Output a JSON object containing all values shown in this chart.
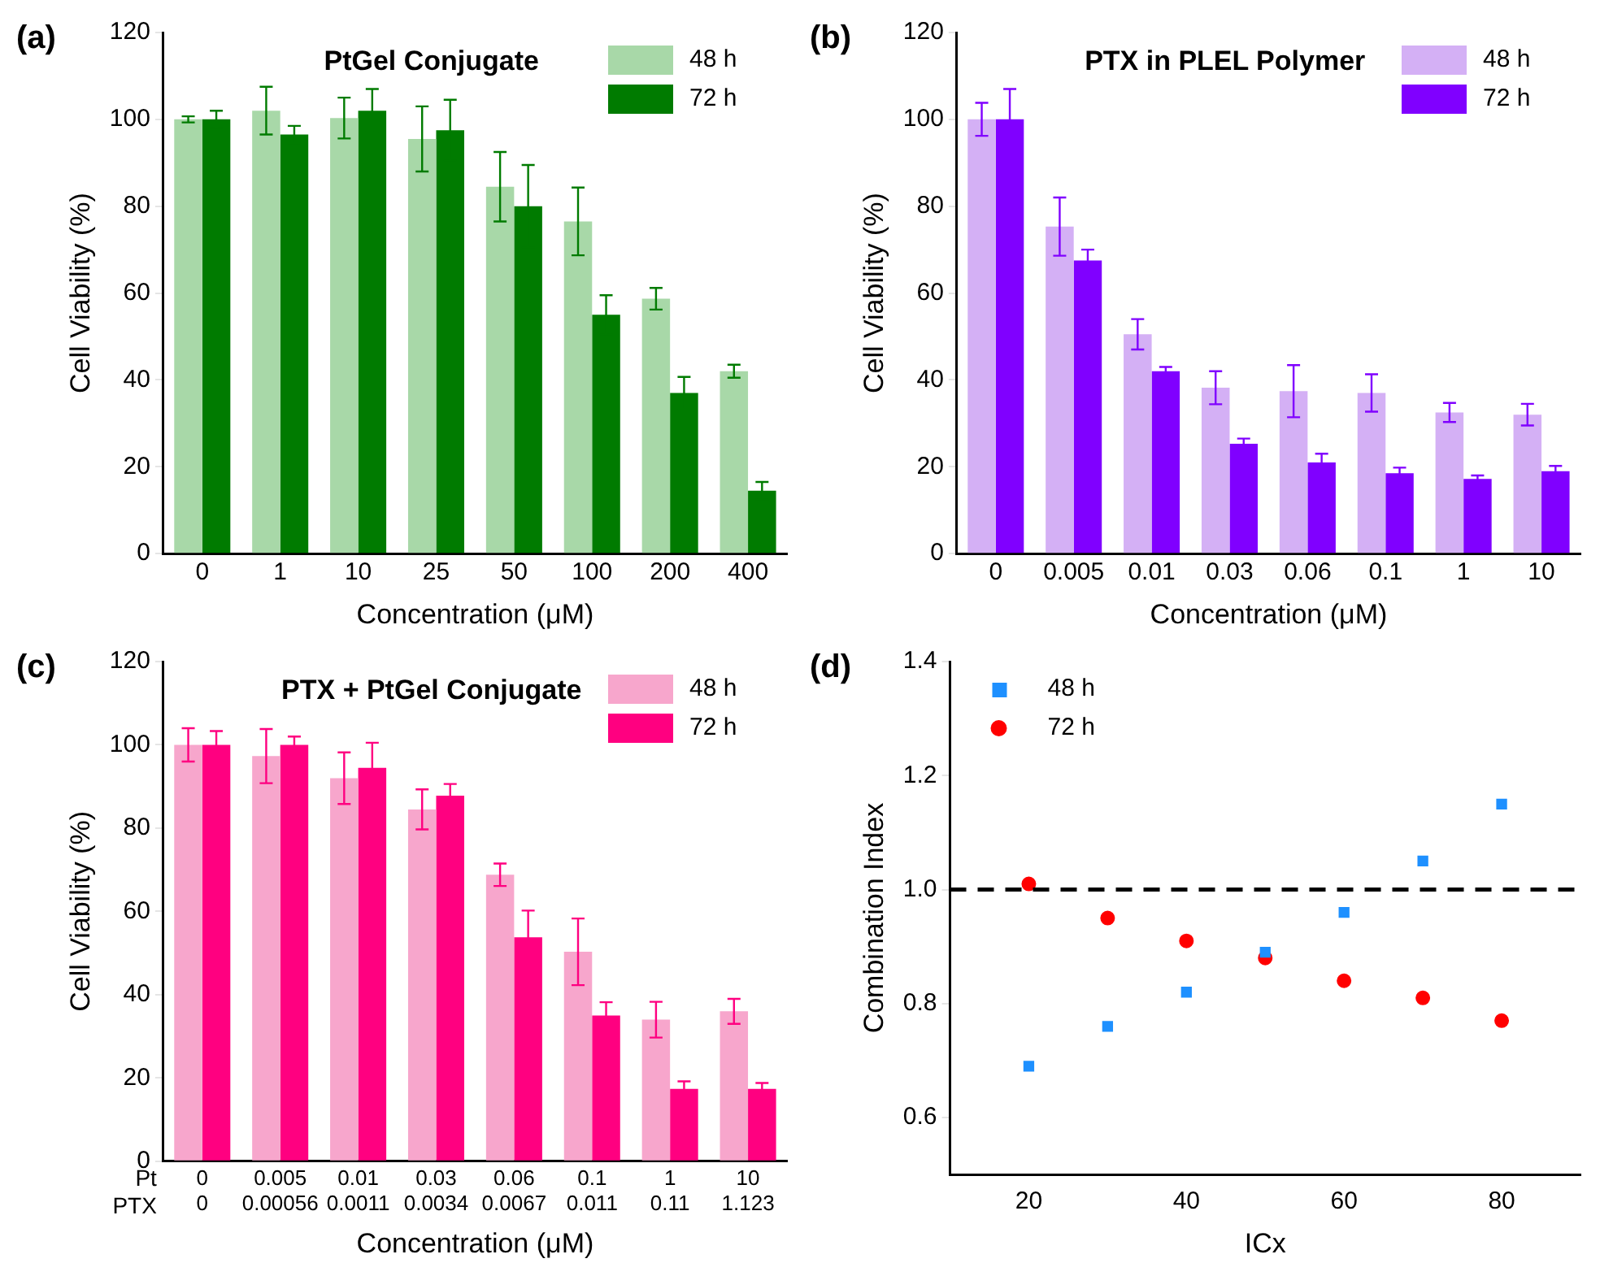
{
  "chart_data": [
    {
      "type": "bar",
      "title": "PtGel Conjugate",
      "xlabel": "Concentration (μM)",
      "ylabel": "Cell Viability (%)",
      "annotations": [
        "(a)"
      ],
      "categories": [
        "0",
        "1",
        "10",
        "25",
        "50",
        "100",
        "200",
        "400"
      ],
      "series": [
        {
          "name": "48 h",
          "color": "#a8d8a8",
          "values": [
            100,
            102,
            100.3,
            95.5,
            84.5,
            76.5,
            58.7,
            42
          ],
          "errors": [
            0.7,
            5.5,
            4.7,
            7.5,
            8,
            7.8,
            2.5,
            1.5
          ]
        },
        {
          "name": "72 h",
          "color": "#007b00",
          "values": [
            100,
            96.5,
            102,
            97.5,
            80,
            55,
            37,
            14.5
          ],
          "errors": [
            2,
            2,
            5,
            7,
            9.5,
            4.5,
            3.7,
            2
          ]
        }
      ],
      "ylim": [
        0,
        120
      ],
      "yticks": [
        0,
        20,
        40,
        60,
        80,
        100,
        120
      ],
      "grid": false,
      "legend": "top right"
    },
    {
      "type": "bar",
      "title": "PTX in PLEL Polymer",
      "xlabel": "Concentration (μM)",
      "ylabel": "Cell Viability (%)",
      "annotations": [
        "(b)"
      ],
      "categories": [
        "0",
        "0.005",
        "0.01",
        "0.03",
        "0.06",
        "0.1",
        "1",
        "10"
      ],
      "series": [
        {
          "name": "48 h",
          "color": "#d4b0f5",
          "values": [
            100,
            75.3,
            50.5,
            38.2,
            37.4,
            37,
            32.5,
            32
          ],
          "errors": [
            3.8,
            6.7,
            3.5,
            3.8,
            6,
            4.3,
            2.2,
            2.5
          ]
        },
        {
          "name": "72 h",
          "color": "#8000ff",
          "values": [
            100,
            67.5,
            42,
            25.3,
            21,
            18.5,
            17.2,
            19
          ],
          "errors": [
            7,
            2.5,
            1,
            1.2,
            2,
            1.3,
            0.8,
            1.2
          ]
        }
      ],
      "ylim": [
        0,
        120
      ],
      "yticks": [
        0,
        20,
        40,
        60,
        80,
        100,
        120
      ],
      "grid": false,
      "legend": "top right"
    },
    {
      "type": "bar",
      "title": "PTX + PtGel Conjugate",
      "xlabel": "Concentration (μM)",
      "ylabel": "Cell Viability (%)",
      "annotations": [
        "(c)",
        "Pt",
        "PTX"
      ],
      "categories": [
        "0\n0",
        "0.005\n0.00056",
        "0.01\n0.0011",
        "0.03\n0.0034",
        "0.06\n0.0067",
        "0.1\n0.011",
        "1\n0.11",
        "10\n1.123"
      ],
      "series": [
        {
          "name": "48 h",
          "color": "#f7a6cc",
          "values": [
            100,
            97.3,
            92,
            84.5,
            68.8,
            50.3,
            34,
            36
          ],
          "errors": [
            4,
            6.5,
            6.2,
            4.8,
            2.7,
            8,
            4.3,
            3
          ]
        },
        {
          "name": "72 h",
          "color": "#ff0080",
          "values": [
            100,
            100,
            94.5,
            87.8,
            53.8,
            35,
            17.4,
            17.4
          ],
          "errors": [
            3.3,
            2,
            6,
            2.8,
            6.4,
            3.2,
            1.8,
            1.4
          ]
        }
      ],
      "ylim": [
        0,
        120
      ],
      "yticks": [
        0,
        20,
        40,
        60,
        80,
        100,
        120
      ],
      "grid": false,
      "legend": "top right"
    },
    {
      "type": "scatter",
      "xlabel": "ICx",
      "ylabel": "Combination Index",
      "annotations": [
        "(d)"
      ],
      "x": [
        20,
        30,
        40,
        50,
        60,
        70,
        80
      ],
      "series": [
        {
          "name": "48 h",
          "color": "#1e90ff",
          "marker": "square",
          "values": [
            0.69,
            0.76,
            0.82,
            0.89,
            0.96,
            1.05,
            1.15
          ]
        },
        {
          "name": "72 h",
          "color": "#ff0000",
          "marker": "circle",
          "values": [
            1.01,
            0.95,
            0.91,
            0.88,
            0.84,
            0.81,
            0.77
          ]
        }
      ],
      "xlim": [
        10,
        90
      ],
      "xticks": [
        20,
        40,
        60,
        80
      ],
      "ylim": [
        0.5,
        1.4
      ],
      "yticks": [
        0.6,
        0.8,
        {
          "value": 1,
          "label": "1.0"
        },
        1.2,
        1.4
      ],
      "ref_lines": [
        {
          "axis": "y",
          "value": 1.0,
          "color": "#000000",
          "line_style": "dashed"
        }
      ],
      "grid": false,
      "legend": "top left"
    }
  ]
}
